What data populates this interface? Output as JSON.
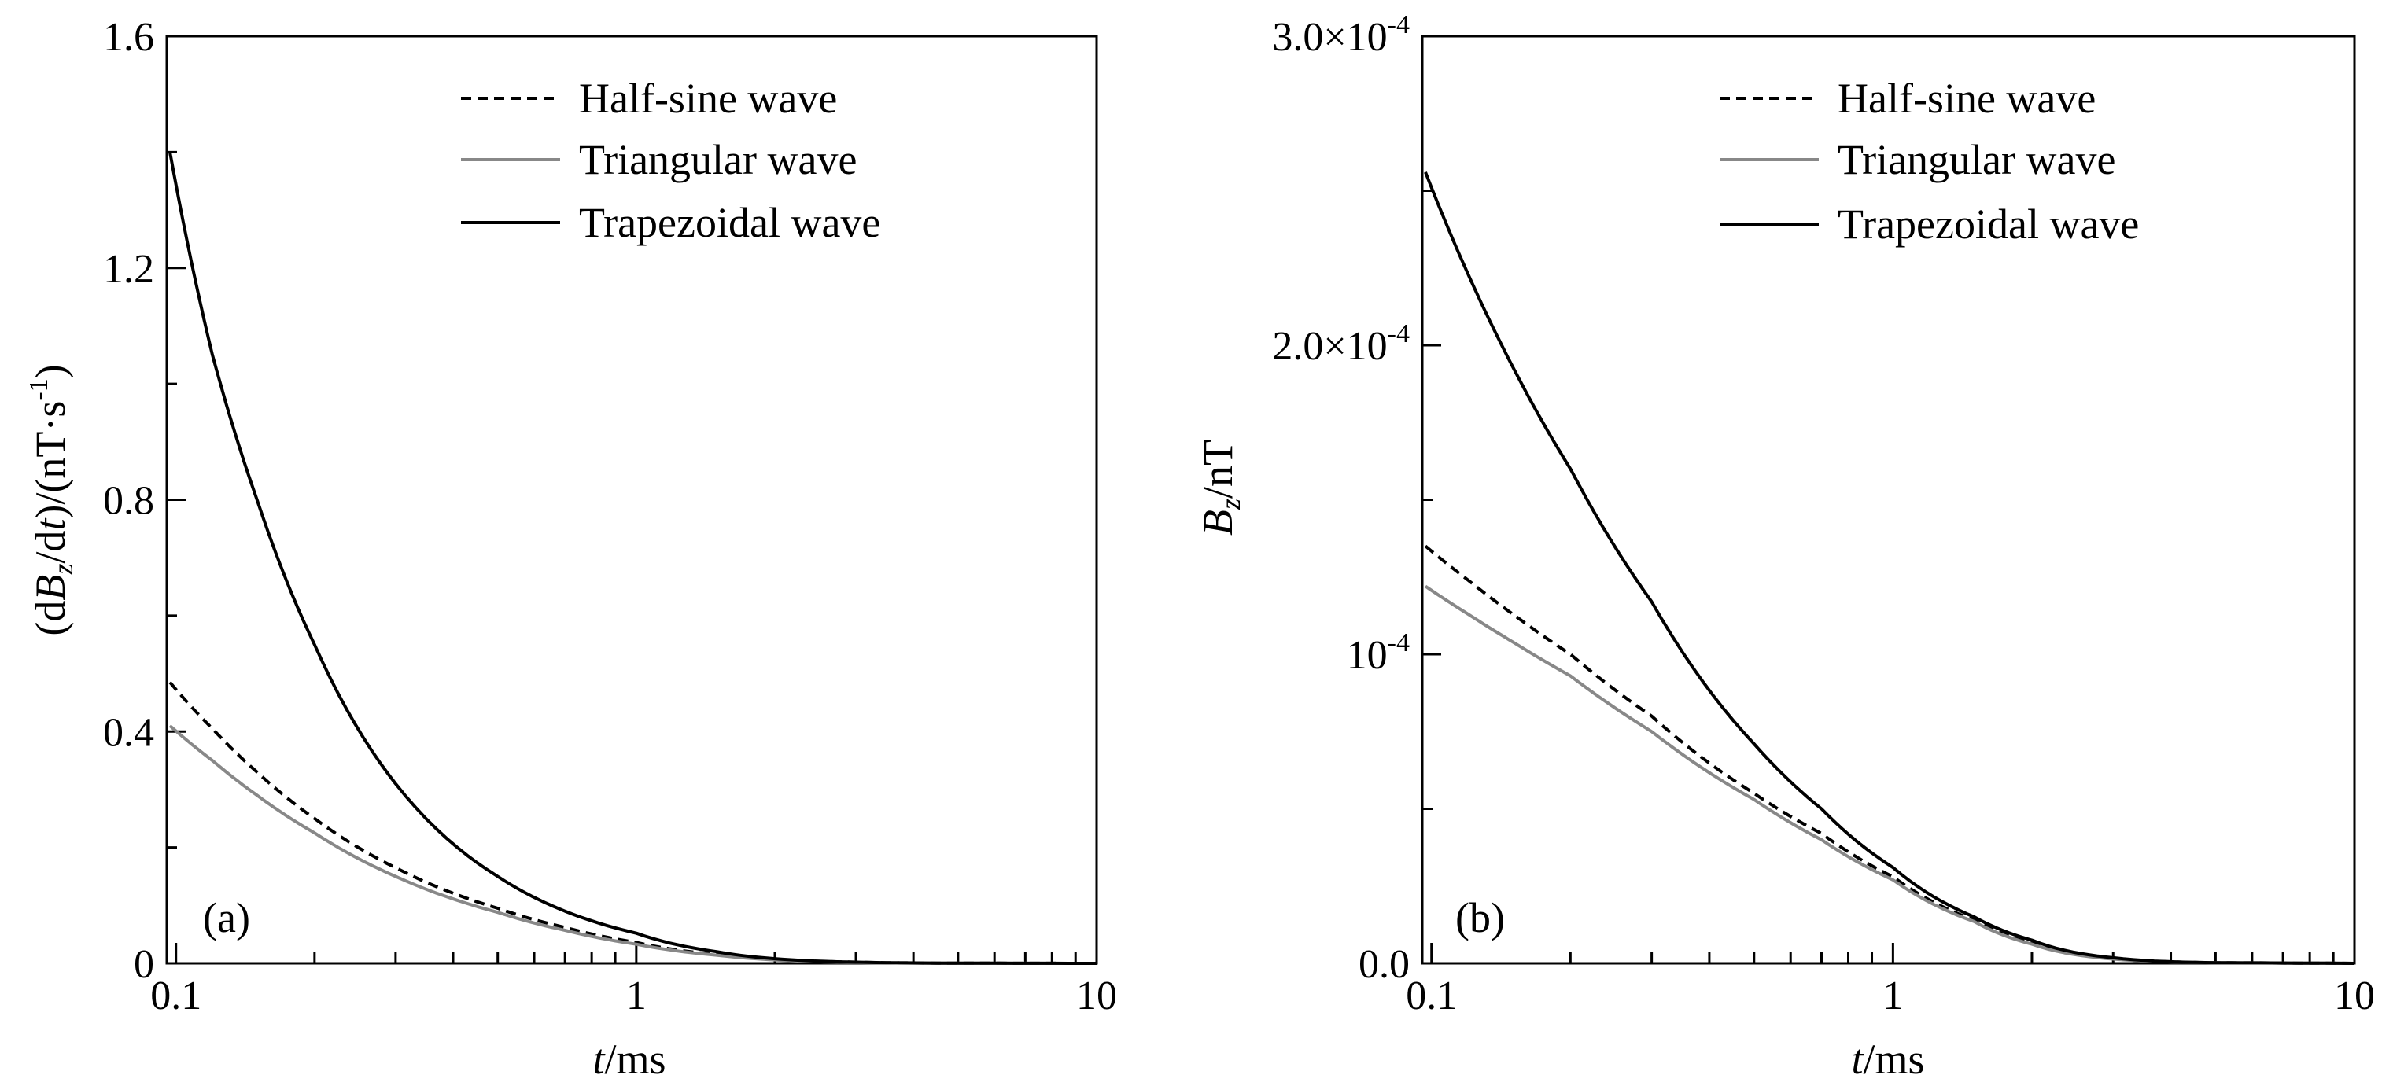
{
  "chart_data": [
    {
      "type": "line",
      "panel_label": "(a)",
      "xlabel": {
        "var": "t",
        "unit": "/ms"
      },
      "ylabel": {
        "prefix": "(d",
        "var": "B",
        "sub": "z",
        "mid": "/d",
        "var2": "t",
        "suffix": ")/(nT·s",
        "sup": "-1",
        "end": ")"
      },
      "xscale": "log",
      "xlim": [
        0.0955,
        10
      ],
      "ylim": [
        0,
        1.6
      ],
      "xticks": [
        {
          "value": 0.1,
          "label": "0.1"
        },
        {
          "value": 1,
          "label": "1"
        },
        {
          "value": 10,
          "label": "10"
        }
      ],
      "yticks": [
        {
          "value": 0,
          "label": "0"
        },
        {
          "value": 0.4,
          "label": "0.4"
        },
        {
          "value": 0.8,
          "label": "0.8"
        },
        {
          "value": 1.2,
          "label": "1.2"
        },
        {
          "value": 1.6,
          "label": "1.6"
        }
      ],
      "legend_position": "top-right",
      "series": [
        {
          "name": "Half-sine wave",
          "style": "dashed",
          "color": "#000000",
          "x": [
            0.097,
            0.12,
            0.15,
            0.2,
            0.3,
            0.5,
            0.7,
            1,
            1.5,
            2,
            3,
            5,
            10
          ],
          "y": [
            0.485,
            0.405,
            0.33,
            0.25,
            0.165,
            0.095,
            0.062,
            0.036,
            0.015,
            0.007,
            0.002,
            0.0003,
            0
          ]
        },
        {
          "name": "Triangular wave",
          "style": "solid",
          "color": "#888888",
          "x": [
            0.097,
            0.12,
            0.15,
            0.2,
            0.3,
            0.5,
            0.7,
            1,
            1.5,
            2,
            3,
            5,
            10
          ],
          "y": [
            0.41,
            0.35,
            0.29,
            0.225,
            0.15,
            0.088,
            0.057,
            0.033,
            0.014,
            0.006,
            0.0015,
            0.0002,
            0
          ]
        },
        {
          "name": "Trapezoidal wave",
          "style": "solid",
          "color": "#000000",
          "x": [
            0.097,
            0.12,
            0.15,
            0.2,
            0.3,
            0.5,
            0.7,
            1,
            1.5,
            2,
            3,
            5,
            10
          ],
          "y": [
            1.4,
            1.05,
            0.8,
            0.55,
            0.31,
            0.15,
            0.09,
            0.052,
            0.02,
            0.008,
            0.002,
            0.0003,
            0
          ]
        }
      ]
    },
    {
      "type": "line",
      "panel_label": "(b)",
      "xlabel": {
        "var": "t",
        "unit": "/ms"
      },
      "ylabel": {
        "var": "B",
        "sub": "z",
        "unit": "/nT"
      },
      "xscale": "log",
      "xlim": [
        0.0955,
        10
      ],
      "ylim": [
        0,
        0.0003
      ],
      "xticks": [
        {
          "value": 0.1,
          "label": "0.1"
        },
        {
          "value": 1,
          "label": "1"
        },
        {
          "value": 10,
          "label": "10"
        }
      ],
      "yticks": [
        {
          "value": 0,
          "label": "0.0",
          "mantissa": "",
          "exp": ""
        },
        {
          "value": 0.0001,
          "label": "10⁻⁴",
          "mantissa": "10",
          "exp": "-4"
        },
        {
          "value": 0.0002,
          "label": "2.0×10⁻⁴",
          "mantissa": "2.0×10",
          "exp": "-4"
        },
        {
          "value": 0.0003,
          "label": "3.0×10⁻⁴",
          "mantissa": "3.0×10",
          "exp": "-4"
        }
      ],
      "legend_position": "top-right",
      "series": [
        {
          "name": "Half-sine wave",
          "style": "dashed",
          "color": "#000000",
          "x": [
            0.097,
            0.12,
            0.15,
            0.2,
            0.3,
            0.5,
            0.7,
            1,
            1.5,
            2,
            3,
            5,
            10
          ],
          "y": [
            0.000135,
            0.000124,
            0.000113,
            0.0001,
            8e-05,
            5.5e-05,
            4.2e-05,
            2.8e-05,
            1.4e-05,
            6.5e-06,
            1.5e-06,
            2e-07,
            0
          ]
        },
        {
          "name": "Triangular wave",
          "style": "solid",
          "color": "#888888",
          "x": [
            0.097,
            0.12,
            0.15,
            0.2,
            0.3,
            0.5,
            0.7,
            1,
            1.5,
            2,
            3,
            5,
            10
          ],
          "y": [
            0.000122,
            0.000113,
            0.000104,
            9.3e-05,
            7.5e-05,
            5.3e-05,
            4e-05,
            2.7e-05,
            1.35e-05,
            6.2e-06,
            1.4e-06,
            2e-07,
            0
          ]
        },
        {
          "name": "Trapezoidal wave",
          "style": "solid",
          "color": "#000000",
          "x": [
            0.097,
            0.12,
            0.15,
            0.2,
            0.3,
            0.5,
            0.7,
            1,
            1.5,
            2,
            3,
            5,
            10
          ],
          "y": [
            0.000256,
            0.000223,
            0.000193,
            0.00016,
            0.000117,
            7.1e-05,
            5e-05,
            3.1e-05,
            1.5e-05,
            7.5e-06,
            1.8e-06,
            2e-07,
            0
          ]
        }
      ]
    }
  ]
}
